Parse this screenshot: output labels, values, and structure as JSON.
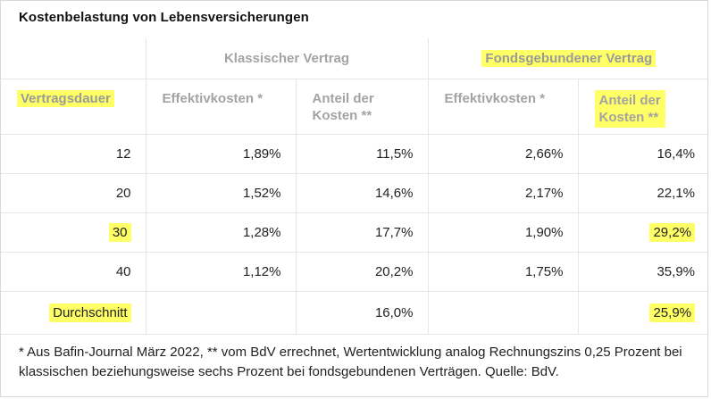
{
  "title": "Kostenbelastung von Lebensversicherungen",
  "header": {
    "group_classic": "Klassischer Vertrag",
    "group_fund": "Fondsgebundener Vertrag",
    "duration": "Vertragsdauer",
    "effective_costs": "Effektivkosten *",
    "share_line1": "Anteil der",
    "share_line2": "Kosten **"
  },
  "rows": [
    {
      "duration": "12",
      "classic_eff": "1,89%",
      "classic_share": "11,5%",
      "fund_eff": "2,66%",
      "fund_share": "16,4%"
    },
    {
      "duration": "20",
      "classic_eff": "1,52%",
      "classic_share": "14,6%",
      "fund_eff": "2,17%",
      "fund_share": "22,1%"
    },
    {
      "duration": "30",
      "classic_eff": "1,28%",
      "classic_share": "17,7%",
      "fund_eff": "1,90%",
      "fund_share": "29,2%"
    },
    {
      "duration": "40",
      "classic_eff": "1,12%",
      "classic_share": "20,2%",
      "fund_eff": "1,75%",
      "fund_share": "35,9%"
    }
  ],
  "average": {
    "label": "Durchschnitt",
    "classic_eff": "",
    "classic_share": "16,0%",
    "fund_eff": "",
    "fund_share": "25,9%"
  },
  "footnote": "* Aus Bafin-Journal März 2022, ** vom BdV errechnet, Wertentwicklung analog Rechnungszins 0,25 Prozent bei klassischen beziehungsweise sechs Prozent bei fondsgebundenen Verträgen. Quelle: BdV.",
  "highlight_color": "#ffff66"
}
